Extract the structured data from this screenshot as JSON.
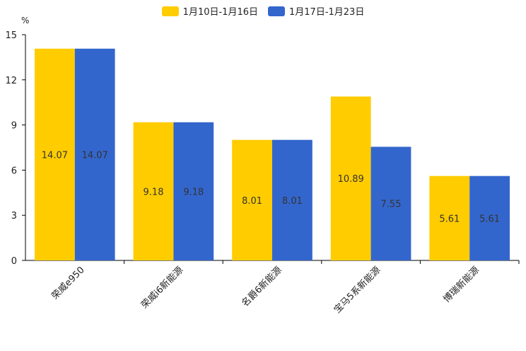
{
  "chart_data": {
    "type": "bar",
    "unit": "%",
    "categories": [
      "荣威e950",
      "荣威i6新能源",
      "名爵6新能源",
      "宝马5系新能源",
      "博瑞新能源"
    ],
    "series": [
      {
        "name": "1月10日-1月16日",
        "color": "#FFCC00",
        "values": [
          14.07,
          9.18,
          8.01,
          10.89,
          5.61
        ]
      },
      {
        "name": "1月17日-1月23日",
        "color": "#3366CC",
        "values": [
          14.07,
          9.18,
          8.01,
          7.55,
          5.61
        ]
      }
    ],
    "ylim": [
      0,
      15
    ],
    "yticks": [
      "0",
      "3",
      "6",
      "9",
      "12",
      "15"
    ],
    "legend_position": "top-center"
  }
}
